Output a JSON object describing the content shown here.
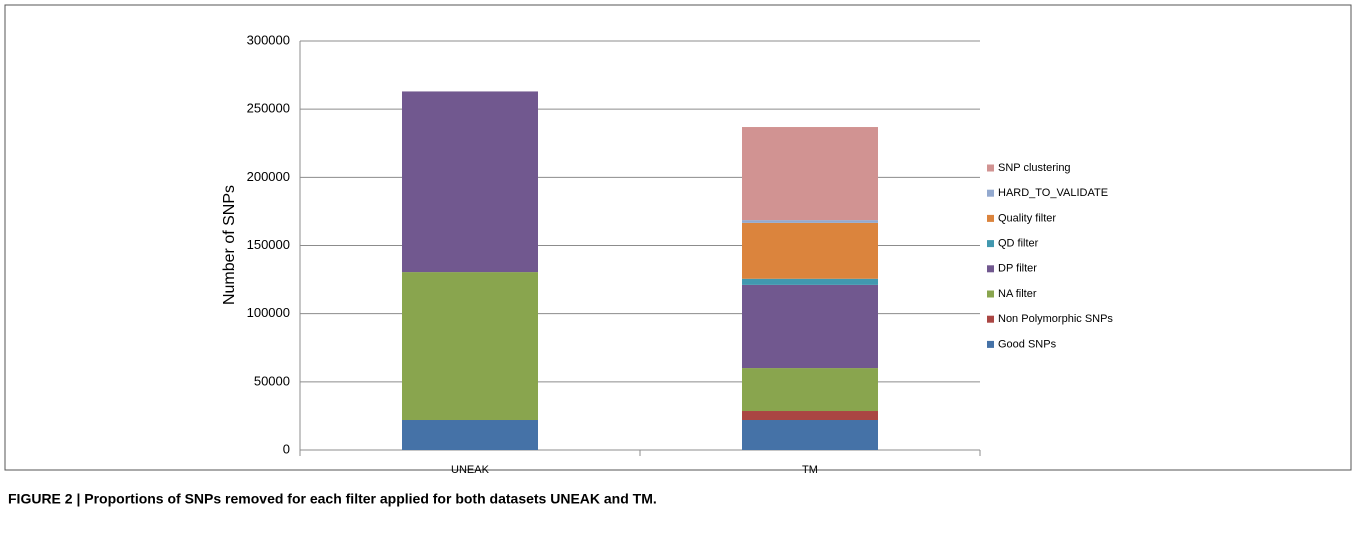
{
  "chart_data": {
    "type": "stacked_bar",
    "ylabel": "Number of SNPs",
    "caption": "FIGURE 2 | Proportions of SNPs removed for each filter applied for both datasets UNEAK and TM.",
    "categories": [
      "UNEAK",
      "TM"
    ],
    "series": [
      {
        "name": "Good SNPs",
        "color": "#4572a7",
        "values": [
          22000,
          22000
        ]
      },
      {
        "name": "Non Polymorphic SNPs",
        "color": "#aa4643",
        "values": [
          0,
          6600
        ]
      },
      {
        "name": "NA filter",
        "color": "#89a54e",
        "values": [
          108500,
          31500
        ]
      },
      {
        "name": "DP filter",
        "color": "#71588f",
        "values": [
          132500,
          61000
        ]
      },
      {
        "name": "QD filter",
        "color": "#4198af",
        "values": [
          0,
          4500
        ]
      },
      {
        "name": "Quality filter",
        "color": "#db843d",
        "values": [
          0,
          41000
        ]
      },
      {
        "name": "HARD_TO_VALIDATE",
        "color": "#93a9cf",
        "values": [
          0,
          2000
        ]
      },
      {
        "name": "SNP clustering",
        "color": "#d19392",
        "values": [
          0,
          68300
        ]
      }
    ],
    "ylim": [
      0,
      300000
    ],
    "yticks": [
      0,
      50000,
      100000,
      150000,
      200000,
      250000,
      300000
    ],
    "grid": true,
    "legend": "right"
  }
}
